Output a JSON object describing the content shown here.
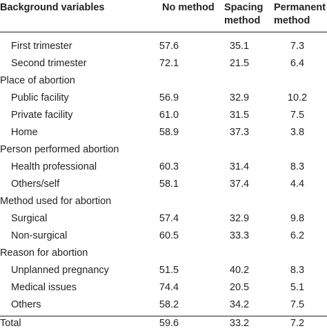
{
  "table": {
    "headers": {
      "background": "Background variables",
      "no_method": "No method",
      "spacing_method": "Spacing\nmethod",
      "permanent_method": "Permanent\nmethod"
    },
    "rows": [
      {
        "kind": "sub",
        "label": "First trimester",
        "no_method": "57.6",
        "spacing": "35.1",
        "permanent": "7.3"
      },
      {
        "kind": "sub",
        "label": "Second trimester",
        "no_method": "72.1",
        "spacing": "21.5",
        "permanent": "6.4"
      },
      {
        "kind": "cat",
        "label": "Place of abortion"
      },
      {
        "kind": "sub",
        "label": "Public facility",
        "no_method": "56.9",
        "spacing": "32.9",
        "permanent": "10.2"
      },
      {
        "kind": "sub",
        "label": "Private facility",
        "no_method": "61.0",
        "spacing": "31.5",
        "permanent": "7.5"
      },
      {
        "kind": "sub",
        "label": "Home",
        "no_method": "58.9",
        "spacing": "37.3",
        "permanent": "3.8"
      },
      {
        "kind": "cat",
        "label": "Person performed abortion"
      },
      {
        "kind": "sub",
        "label": "Health professional",
        "no_method": "60.3",
        "spacing": "31.4",
        "permanent": "8.3"
      },
      {
        "kind": "sub",
        "label": "Others/self",
        "no_method": "58.1",
        "spacing": "37.4",
        "permanent": "4.4"
      },
      {
        "kind": "cat",
        "label": "Method used for abortion"
      },
      {
        "kind": "sub",
        "label": "Surgical",
        "no_method": "57.4",
        "spacing": "32.9",
        "permanent": "9.8"
      },
      {
        "kind": "sub",
        "label": "Non-surgical",
        "no_method": "60.5",
        "spacing": "33.3",
        "permanent": "6.2"
      },
      {
        "kind": "cat",
        "label": "Reason for abortion"
      },
      {
        "kind": "sub",
        "label": "Unplanned pregnancy",
        "no_method": "51.5",
        "spacing": "40.2",
        "permanent": "8.3"
      },
      {
        "kind": "sub",
        "label": "Medical issues",
        "no_method": "74.4",
        "spacing": "20.5",
        "permanent": "5.1"
      },
      {
        "kind": "sub",
        "label": "Others",
        "no_method": "58.2",
        "spacing": "34.2",
        "permanent": "7.5"
      }
    ],
    "total": {
      "label": "Total",
      "no_method": "59.6",
      "spacing": "33.2",
      "permanent": "7.2"
    }
  }
}
